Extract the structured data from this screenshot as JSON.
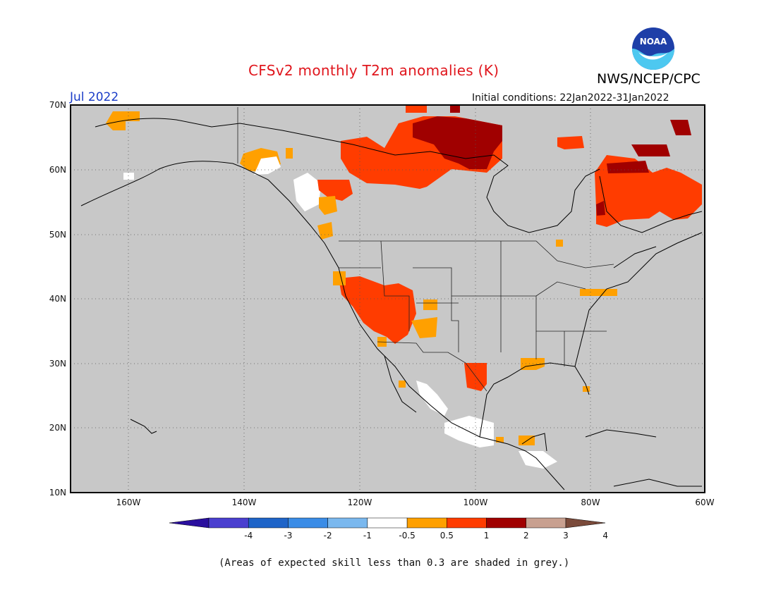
{
  "header": {
    "title": "CFSv2 monthly T2m anomalies (K)",
    "org": "NWS/NCEP/CPC",
    "month": "Jul 2022",
    "initial_conditions": "Initial conditions: 22Jan2022-31Jan2022",
    "logo_text": "NOAA"
  },
  "map": {
    "lon_range": [
      -170,
      -60
    ],
    "lat_range": [
      10,
      70
    ],
    "grey_shade_color": "#c8c8c8",
    "lat_labels": [
      "10N",
      "20N",
      "30N",
      "40N",
      "50N",
      "60N",
      "70N"
    ],
    "lon_labels": [
      "160W",
      "140W",
      "120W",
      "100W",
      "80W",
      "60W"
    ]
  },
  "legend": {
    "colors": [
      "#2a0f9e",
      "#4a3fcf",
      "#1e64c8",
      "#3a8ce6",
      "#7ab8ee",
      "#ffffff",
      "#ffa000",
      "#ff3c00",
      "#a00000",
      "#c8a090",
      "#7a4a3a"
    ],
    "tick_labels": [
      "-4",
      "-3",
      "-2",
      "-1",
      "-0.5",
      "0.5",
      "1",
      "2",
      "3",
      "4"
    ],
    "note": "(Areas of expected skill less than 0.3 are shaded in grey.)"
  },
  "anomaly_regions": [
    {
      "name": "northern-canada",
      "category": "1 to 2 K",
      "color": "#ff3c00"
    },
    {
      "name": "central-arctic-canada",
      "category": "2 to 3 K",
      "color": "#a00000"
    },
    {
      "name": "hudson-quebec",
      "category": "1 to 2 K",
      "color": "#ff3c00"
    },
    {
      "name": "us-southwest",
      "category": "1 to 2 K",
      "color": "#ff3c00"
    },
    {
      "name": "south-texas",
      "category": "1 to 2 K",
      "color": "#ff3c00"
    },
    {
      "name": "alaska-panhandle",
      "category": "0.5 to 1 K",
      "color": "#ffa000"
    },
    {
      "name": "mexico-near-normal",
      "category": "-0.5 to 0.5 K",
      "color": "#ffffff"
    }
  ]
}
